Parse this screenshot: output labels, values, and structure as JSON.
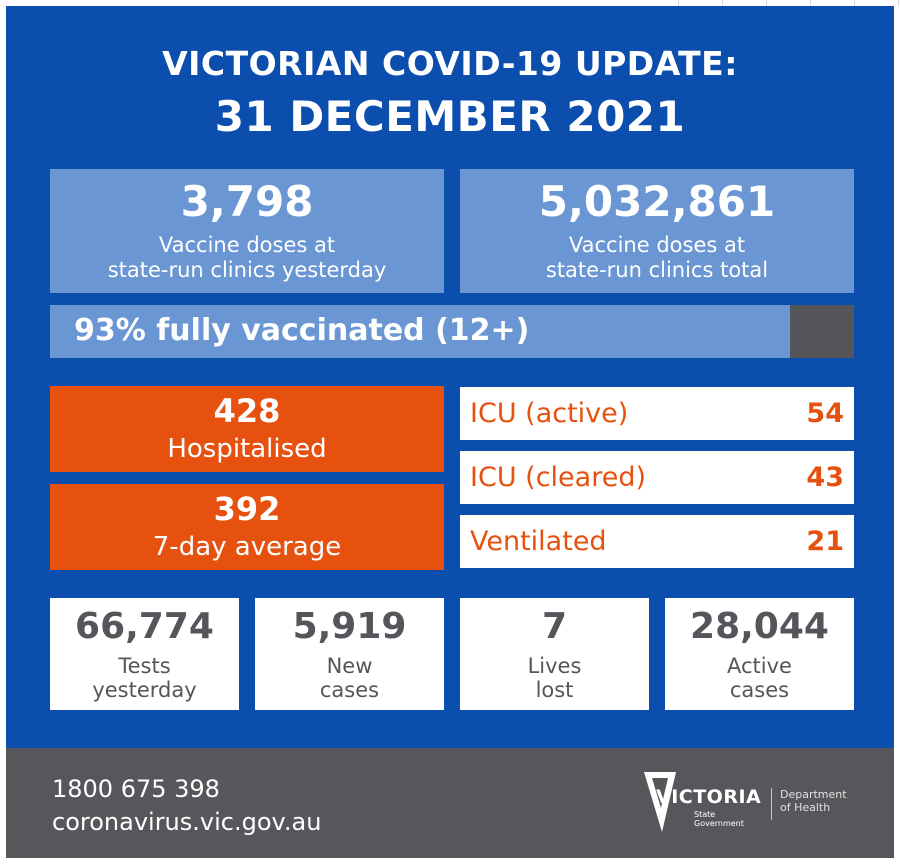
{
  "header": {
    "title_line1": "VICTORIAN COVID-19 UPDATE:",
    "title_line2": "31 DECEMBER 2021"
  },
  "vaccine_yesterday": {
    "value": "3,798",
    "label_line1": "Vaccine doses at",
    "label_line2": "state-run clinics yesterday"
  },
  "vaccine_total": {
    "value": "5,032,861",
    "label_line1": "Vaccine doses at",
    "label_line2": "state-run clinics total"
  },
  "vaccination_bar": {
    "label": "93% fully vaccinated (12+)",
    "percent": 93
  },
  "hospitalised": {
    "value": "428",
    "label": "Hospitalised"
  },
  "seven_day": {
    "value": "392",
    "label": "7-day average"
  },
  "icu": [
    {
      "label": "ICU (active)",
      "value": "54"
    },
    {
      "label": "ICU (cleared)",
      "value": "43"
    },
    {
      "label": "Ventilated",
      "value": "21"
    }
  ],
  "stats": [
    {
      "value": "66,774",
      "label_line1": "Tests",
      "label_line2": "yesterday"
    },
    {
      "value": "5,919",
      "label_line1": "New",
      "label_line2": "cases"
    },
    {
      "value": "7",
      "label_line1": "Lives",
      "label_line2": "lost"
    },
    {
      "value": "28,044",
      "label_line1": "Active",
      "label_line2": "cases"
    }
  ],
  "footer": {
    "phone": "1800 675 398",
    "website": "coronavirus.vic.gov.au",
    "logo_word": "VICTORIA",
    "logo_sub_line1": "State",
    "logo_sub_line2": "Government",
    "dept_line1": "Department",
    "dept_line2": "of Health"
  },
  "colors": {
    "background_blue": "#0c4eae",
    "light_blue": "#6a96d3",
    "orange": "#e6510f",
    "grey": "#56575b",
    "white": "#ffffff"
  },
  "icons": {
    "logo": "victoria-state-government-logo"
  }
}
